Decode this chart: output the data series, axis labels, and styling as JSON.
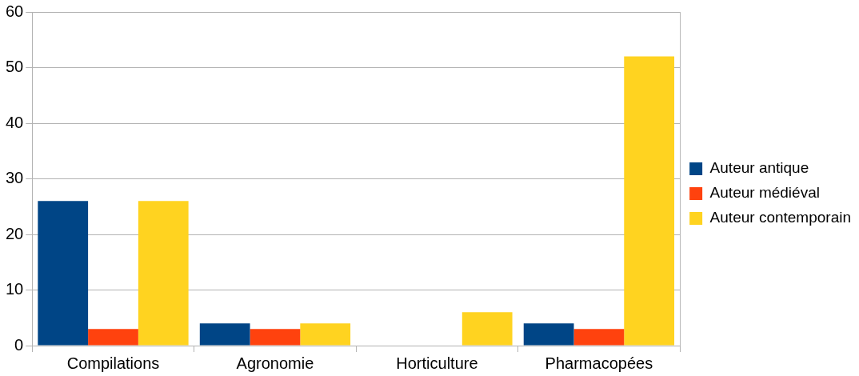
{
  "chart_data": {
    "type": "bar",
    "categories": [
      "Compilations",
      "Agronomie",
      "Horticulture",
      "Pharmacopées"
    ],
    "series": [
      {
        "name": "Auteur antique",
        "color": "#004586",
        "values": [
          26,
          4,
          0,
          4
        ]
      },
      {
        "name": "Auteur médiéval",
        "color": "#ff420e",
        "values": [
          3,
          3,
          0,
          3
        ]
      },
      {
        "name": "Auteur contemporain",
        "color": "#ffd320",
        "values": [
          26,
          4,
          6,
          52
        ]
      }
    ],
    "ylim": [
      0,
      60
    ],
    "yticks": [
      0,
      10,
      20,
      30,
      40,
      50,
      60
    ],
    "grid": "y",
    "legend": "right"
  }
}
